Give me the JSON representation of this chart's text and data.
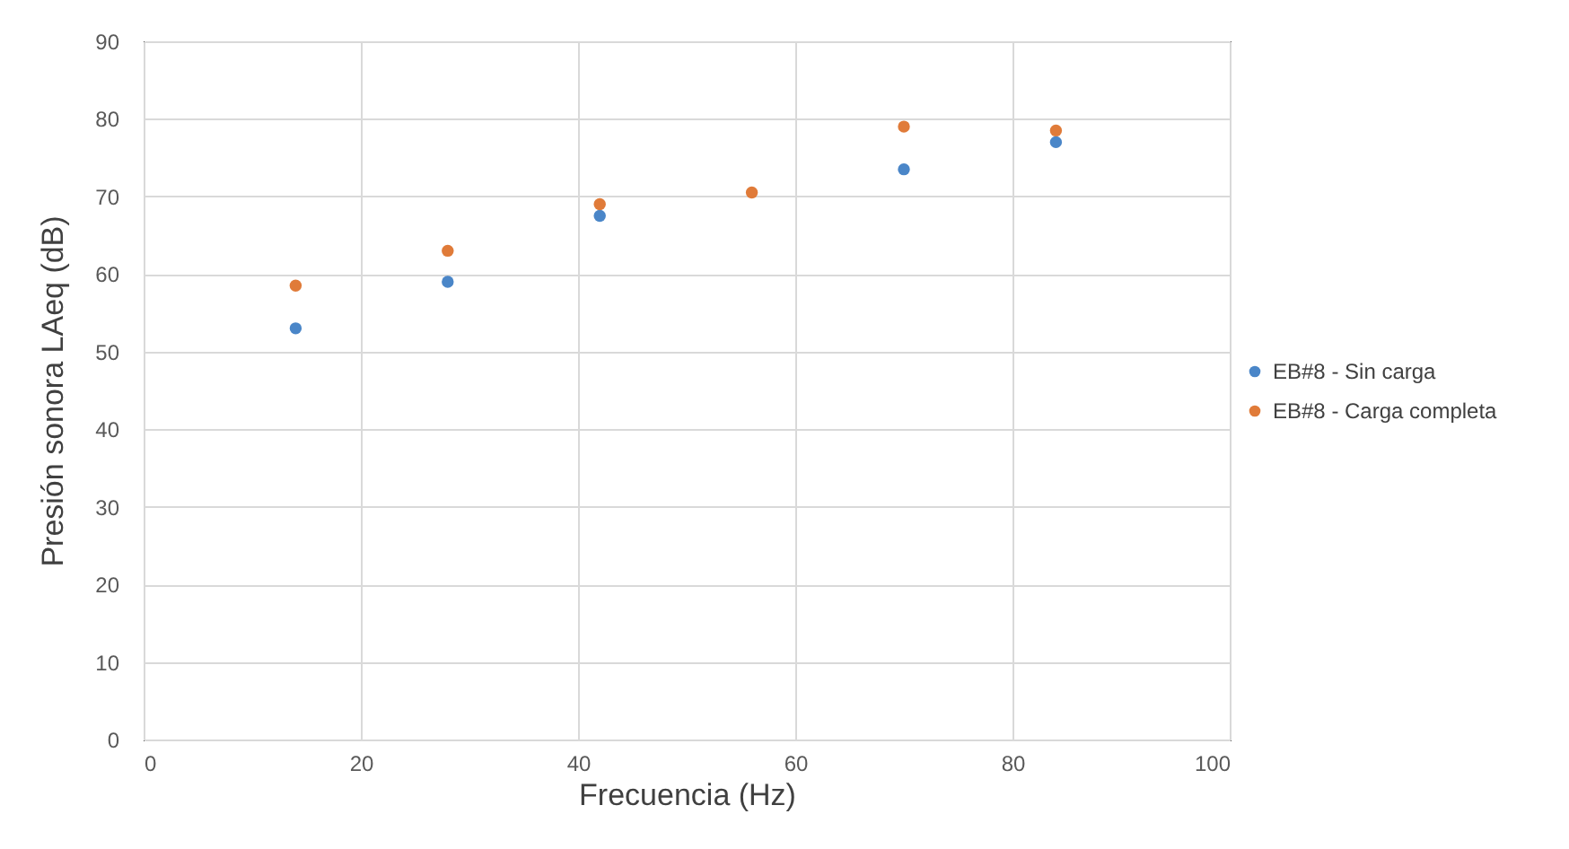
{
  "chart_data": {
    "type": "scatter",
    "xlabel": "Frecuencia (Hz)",
    "ylabel": "Presión sonora LAeq (dB)",
    "x": [
      14,
      28,
      42,
      56,
      70,
      84
    ],
    "series": [
      {
        "name": "EB#8 - Sin carga",
        "color": "#4a86c8",
        "values": [
          53,
          59,
          67.5,
          null,
          73.5,
          77
        ]
      },
      {
        "name": "EB#8 - Carga completa",
        "color": "#e07b39",
        "values": [
          58.5,
          63,
          69,
          70.5,
          79,
          78.5
        ]
      }
    ],
    "xlim": [
      0,
      100
    ],
    "xticks": [
      0,
      20,
      40,
      60,
      80,
      100
    ],
    "ylim": [
      0,
      90
    ],
    "yticks": [
      0,
      10,
      20,
      30,
      40,
      50,
      60,
      70,
      80,
      90
    ],
    "grid": true,
    "legend": "right",
    "marker": "circle"
  }
}
